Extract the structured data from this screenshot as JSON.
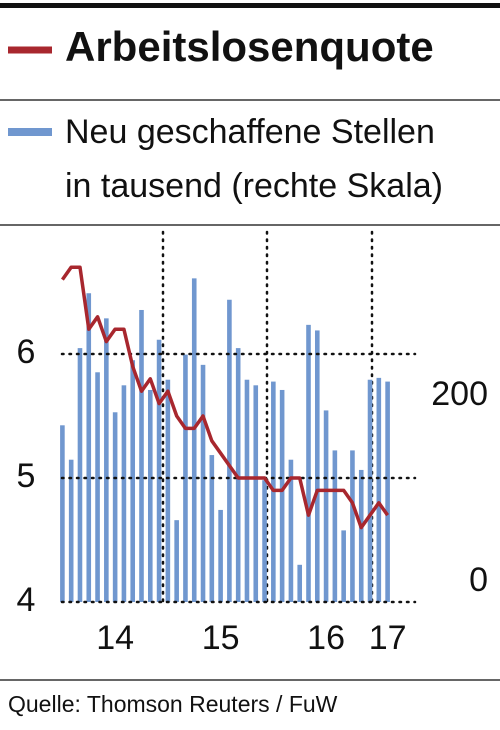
{
  "chart_data": {
    "type": "bar_line",
    "title": "Arbeitslosenquote",
    "subtitle": [
      "Neu geschaffene Stellen",
      "in tausend (rechte Skala)"
    ],
    "source": "Quelle: Thomson Reuters / FuW",
    "categories": [
      null,
      null,
      null,
      null,
      null,
      null,
      "14",
      null,
      null,
      null,
      null,
      null,
      null,
      null,
      null,
      null,
      null,
      null,
      "15",
      null,
      null,
      null,
      null,
      null,
      null,
      null,
      null,
      null,
      null,
      null,
      "16",
      null,
      null,
      null,
      null,
      null,
      null,
      "17"
    ],
    "series": [
      {
        "name": "Neu geschaffene Stellen",
        "type": "bar",
        "axis": "y2",
        "color": "#7097cf",
        "values": [
          190,
          153,
          273,
          332,
          247,
          305,
          204,
          233,
          260,
          314,
          228,
          282,
          239,
          88,
          266,
          348,
          255,
          158,
          99,
          325,
          273,
          239,
          233,
          131,
          237,
          228,
          153,
          40,
          298,
          292,
          206,
          163,
          77,
          163,
          142,
          239,
          241,
          237
        ]
      },
      {
        "name": "Arbeitslosenquote",
        "type": "line",
        "axis": "y",
        "color": "#a8272e",
        "values": [
          6.6,
          6.7,
          6.7,
          6.2,
          6.3,
          6.1,
          6.2,
          6.2,
          5.9,
          5.7,
          5.8,
          5.6,
          5.7,
          5.5,
          5.4,
          5.4,
          5.5,
          5.3,
          5.2,
          5.1,
          5.0,
          5.0,
          5.0,
          5.0,
          4.9,
          4.9,
          5.0,
          5.0,
          4.7,
          4.9,
          4.9,
          4.9,
          4.9,
          4.8,
          4.6,
          4.7,
          4.8,
          4.7
        ]
      }
    ],
    "ylim": [
      4,
      7
    ],
    "yticks": [
      4,
      5,
      6
    ],
    "y2lim": [
      0,
      400
    ],
    "y2ticks": [
      0,
      200
    ],
    "grid": true
  }
}
